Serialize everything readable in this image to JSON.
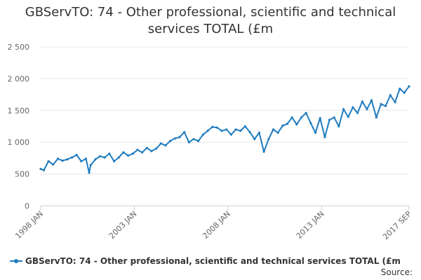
{
  "chart_data": {
    "type": "line",
    "title_lines": [
      "GBServTO: 74 - Other professional, scientific and technical",
      "services TOTAL (£m"
    ],
    "xlabel": "",
    "ylabel": "",
    "ylim": [
      0,
      2500
    ],
    "y_ticks": [
      0,
      500,
      1000,
      1500,
      2000,
      2500
    ],
    "y_tick_labels": [
      "0",
      "500",
      "1 000",
      "1 500",
      "2 000",
      "2 500"
    ],
    "x_tick_labels": [
      "1998 JAN",
      "2003 JAN",
      "2008 JAN",
      "2013 JAN",
      "2017 SEP"
    ],
    "x_tick_positions": [
      0,
      60,
      120,
      180,
      236
    ],
    "grid": true,
    "legend_position": "bottom",
    "series": [
      {
        "name": "GBServTO: 74 - Other professional, scientific and technical services TOTAL (£m",
        "color": "#1f7cc0",
        "x": [
          "1998 JAN",
          "1998 MAR",
          "1998 JUN",
          "1998 SEP",
          "1998 DEC",
          "1999 MAR",
          "1999 JUN",
          "1999 SEP",
          "1999 DEC",
          "2000 MAR",
          "2000 JUN",
          "2000 AUG",
          "2000 SEP",
          "2000 DEC",
          "2001 MAR",
          "2001 JUN",
          "2001 SEP",
          "2001 DEC",
          "2002 MAR",
          "2002 JUN",
          "2002 SEP",
          "2002 DEC",
          "2003 MAR",
          "2003 JUN",
          "2003 SEP",
          "2003 DEC",
          "2004 MAR",
          "2004 JUN",
          "2004 SEP",
          "2004 DEC",
          "2005 MAR",
          "2005 JUN",
          "2005 SEP",
          "2005 DEC",
          "2006 MAR",
          "2006 JUN",
          "2006 SEP",
          "2006 DEC",
          "2007 MAR",
          "2007 JUN",
          "2007 SEP",
          "2007 DEC",
          "2008 MAR",
          "2008 JUN",
          "2008 SEP",
          "2008 DEC",
          "2009 MAR",
          "2009 JUN",
          "2009 SEP",
          "2009 DEC",
          "2010 MAR",
          "2010 JUN",
          "2010 SEP",
          "2010 DEC",
          "2011 MAR",
          "2011 JUN",
          "2011 SEP",
          "2011 DEC",
          "2012 MAR",
          "2012 JUN",
          "2012 SEP",
          "2012 DEC",
          "2013 MAR",
          "2013 JUN",
          "2013 SEP",
          "2013 DEC",
          "2014 MAR",
          "2014 JUN",
          "2014 SEP",
          "2014 DEC",
          "2015 MAR",
          "2015 JUN",
          "2015 SEP",
          "2015 DEC",
          "2016 MAR",
          "2016 JUN",
          "2016 SEP",
          "2016 DEC",
          "2017 MAR",
          "2017 JUN",
          "2017 SEP"
        ],
        "values": [
          580,
          560,
          700,
          650,
          740,
          710,
          730,
          760,
          800,
          700,
          740,
          520,
          640,
          730,
          780,
          760,
          820,
          700,
          760,
          840,
          790,
          820,
          880,
          840,
          910,
          860,
          900,
          980,
          950,
          1020,
          1060,
          1080,
          1160,
          1000,
          1050,
          1020,
          1120,
          1180,
          1240,
          1230,
          1180,
          1200,
          1120,
          1200,
          1180,
          1250,
          1160,
          1050,
          1150,
          850,
          1050,
          1200,
          1150,
          1260,
          1290,
          1390,
          1280,
          1390,
          1460,
          1300,
          1150,
          1380,
          1080,
          1350,
          1390,
          1250,
          1520,
          1400,
          1550,
          1460,
          1640,
          1520,
          1660,
          1390,
          1600,
          1570,
          1740,
          1630,
          1840,
          1780,
          1880
        ]
      }
    ]
  },
  "legend": {
    "label": "GBServTO: 74 - Other professional, scientific and technical services TOTAL (£m"
  },
  "source_label": "Source:"
}
